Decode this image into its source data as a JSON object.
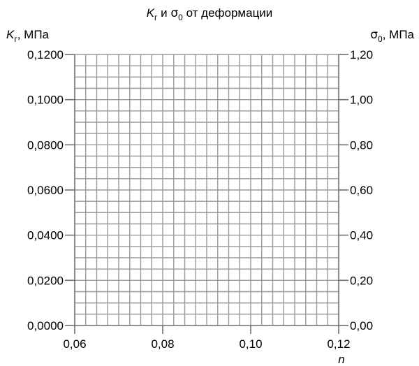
{
  "chart_data": {
    "type": "line",
    "title": {
      "left_symbol": "K",
      "left_subscript": "г",
      "middle": " и ",
      "right_symbol": "σ",
      "right_subscript": "0",
      "suffix": " от деформации"
    },
    "left_axis_label": {
      "symbol": "K",
      "subscript": "г",
      "unit": ", МПа"
    },
    "right_axis_label": {
      "symbol": "σ",
      "subscript": "0",
      "unit": ", МПа"
    },
    "xlabel": "n",
    "xlim": [
      0.06,
      0.12
    ],
    "ylim_left": [
      0.0,
      0.12
    ],
    "ylim_right": [
      0.0,
      1.2
    ],
    "x_ticks": [
      0.06,
      0.08,
      0.1,
      0.12
    ],
    "x_tick_labels": [
      "0,06",
      "0,08",
      "0,10",
      "0,12"
    ],
    "y_left_ticks": [
      0.0,
      0.02,
      0.04,
      0.06,
      0.08,
      0.1,
      0.12
    ],
    "y_left_tick_labels": [
      "0,0000",
      "0,0200",
      "0,0400",
      "0,0600",
      "0,0800",
      "0,1000",
      "0,1200"
    ],
    "y_right_ticks": [
      0.0,
      0.2,
      0.4,
      0.6,
      0.8,
      1.0,
      1.2
    ],
    "y_right_tick_labels": [
      "0,00",
      "0,20",
      "0,40",
      "0,60",
      "0,80",
      "1,00",
      "1,20"
    ],
    "x_grid_step": 0.0025,
    "y_grid_step": 0.005,
    "grid": true,
    "series": []
  }
}
